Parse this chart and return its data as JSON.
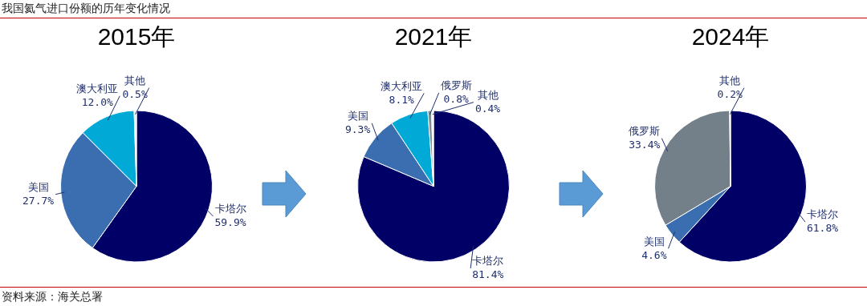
{
  "chart_data": [
    {
      "type": "other",
      "title": "我国氦气进口份额的历年变化情况",
      "annotations": [
        "资料来源：海关总署"
      ]
    },
    {
      "type": "pie",
      "title": "2015年",
      "categories": [
        "卡塔尔",
        "美国",
        "澳大利亚",
        "其他"
      ],
      "values": [
        59.9,
        27.7,
        12.0,
        0.5
      ],
      "colors": [
        "#000066",
        "#3a6eb0",
        "#00a9d6",
        "#eeeeee"
      ],
      "value_labels": [
        "59.9%",
        "27.7%",
        "12.0%",
        "0.5%"
      ],
      "legend": false
    },
    {
      "type": "pie",
      "title": "2021年",
      "categories": [
        "卡塔尔",
        "美国",
        "澳大利亚",
        "俄罗斯",
        "其他"
      ],
      "values": [
        81.4,
        9.3,
        8.1,
        0.8,
        0.4
      ],
      "colors": [
        "#000066",
        "#3a6eb0",
        "#00a9d6",
        "#7f8c94",
        "#eeeeee"
      ],
      "value_labels": [
        "81.4%",
        "9.3%",
        "8.1%",
        "0.8%",
        "0.4%"
      ],
      "legend": false
    },
    {
      "type": "pie",
      "title": "2024年",
      "categories": [
        "卡塔尔",
        "美国",
        "俄罗斯",
        "其他"
      ],
      "values": [
        61.8,
        4.6,
        33.4,
        0.2
      ],
      "colors": [
        "#000066",
        "#3a6eb0",
        "#738089",
        "#eeeeee"
      ],
      "value_labels": [
        "61.8%",
        "4.6%",
        "33.4%",
        "0.2%"
      ],
      "legend": false
    }
  ]
}
